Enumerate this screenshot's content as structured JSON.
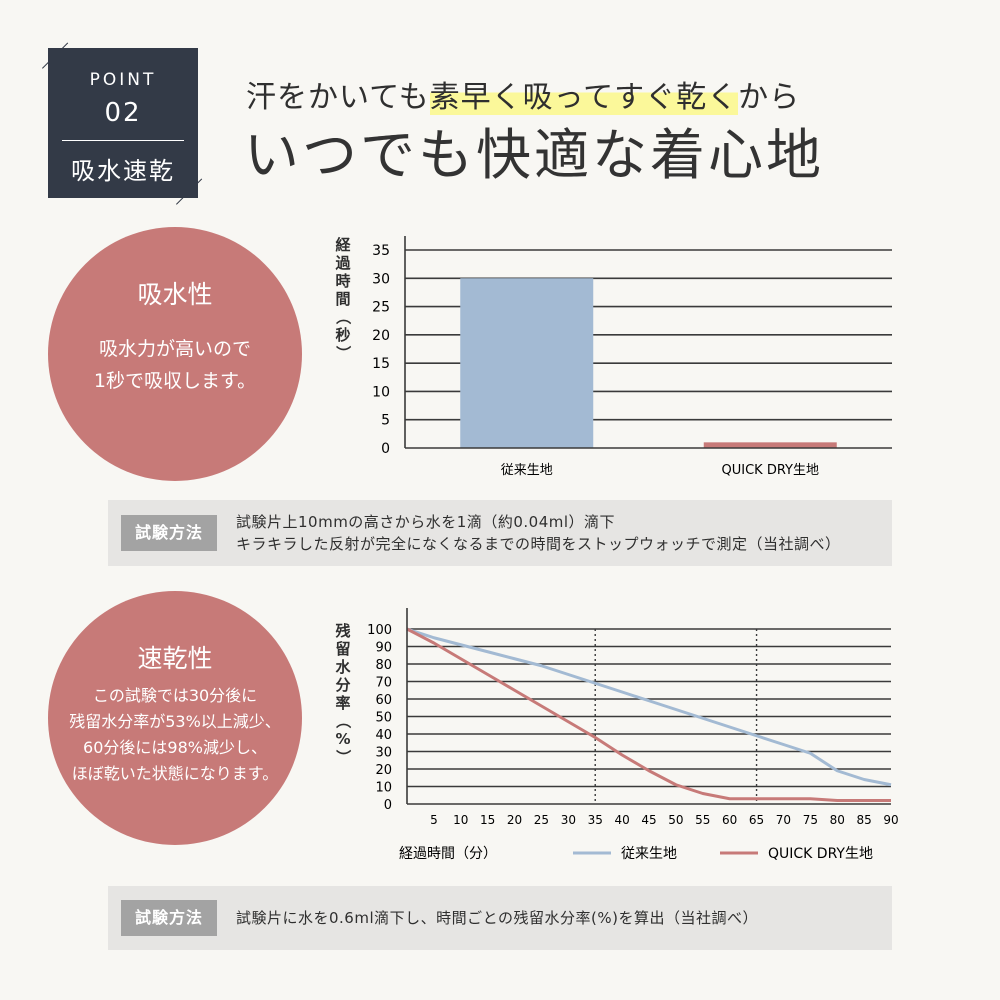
{
  "badge": {
    "point": "POINT",
    "number": "02",
    "label": "吸水速乾"
  },
  "headline": {
    "pre": "汗をかいても",
    "highlight": "素早く吸ってすぐ乾く",
    "post": "から"
  },
  "title": "いつでも快適な着心地",
  "section1": {
    "heading": "吸水性",
    "body": [
      "吸水力が高いので",
      "1秒で吸収します。"
    ],
    "method_tag": "試験方法",
    "method_lines": [
      "試験片上10mmの高さから水を1滴（約0.04ml）滴下",
      "キラキラした反射が完全になくなるまでの時間をストップウォッチで測定（当社調べ）"
    ]
  },
  "section2": {
    "heading": "速乾性",
    "body": [
      "この試験では30分後に",
      "残留水分率が53%以上減少、",
      "60分後には98%減少し、",
      "ほぼ乾いた状態になります。"
    ],
    "method_tag": "試験方法",
    "method_lines": [
      "試験片に水を0.6ml滴下し、時間ごとの残留水分率(%)を算出（当社調べ）"
    ]
  },
  "colors": {
    "dark": "#333a47",
    "accent": "#c77a78",
    "conventional": "#a3bad3",
    "quickdry": "#c77a78",
    "highlight": "#fbf89a"
  },
  "chart_data": [
    {
      "type": "bar",
      "ylabel": "経過時間（秒）",
      "categories": [
        "従来生地",
        "QUICK DRY生地"
      ],
      "values": [
        30,
        1
      ],
      "ylim": [
        0,
        35
      ],
      "yticks": [
        0,
        5,
        10,
        15,
        20,
        25,
        30,
        35
      ],
      "bar_colors": [
        "#a3bad3",
        "#c77a78"
      ],
      "grid": true
    },
    {
      "type": "line",
      "ylabel": "残留水分率（%）",
      "xlabel": "経過時間（分）",
      "x": [
        0,
        5,
        10,
        15,
        20,
        25,
        30,
        35,
        40,
        45,
        50,
        55,
        60,
        65,
        70,
        75,
        80,
        85,
        90
      ],
      "xticks": [
        5,
        10,
        15,
        20,
        25,
        30,
        35,
        40,
        45,
        50,
        55,
        60,
        65,
        70,
        75,
        80,
        85,
        90
      ],
      "yticks": [
        0,
        10,
        20,
        30,
        40,
        50,
        60,
        70,
        80,
        90,
        100
      ],
      "xlim": [
        0,
        90
      ],
      "ylim": [
        0,
        100
      ],
      "series": [
        {
          "name": "従来生地",
          "color": "#a3bad3",
          "values": [
            100,
            95,
            91,
            87,
            83,
            79,
            74,
            69,
            64,
            59,
            54,
            49,
            44,
            39,
            34,
            29,
            19,
            14,
            11
          ]
        },
        {
          "name": "QUICK DRY生地",
          "color": "#c77a78",
          "values": [
            100,
            92,
            83,
            74,
            65,
            56,
            47,
            38,
            28,
            19,
            11,
            6,
            3,
            3,
            3,
            3,
            2,
            2,
            2
          ]
        }
      ],
      "reference_x": [
        35,
        65
      ],
      "legend": "bottom-right",
      "grid": true
    }
  ]
}
